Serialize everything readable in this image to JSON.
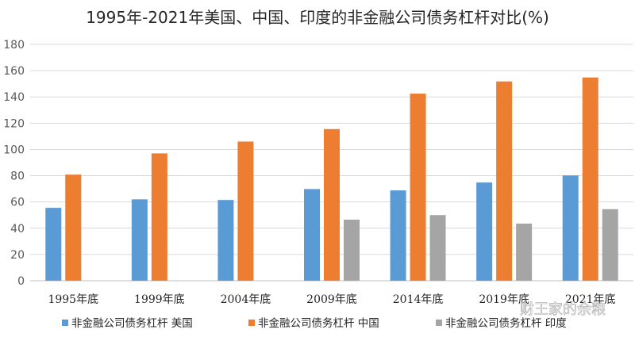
{
  "watermark": "财王家的余粮",
  "chart_data": {
    "type": "bar",
    "title": "1995年-2021年美国、中国、印度的非金融公司债务杠杆对比(%)",
    "categories": [
      "1995年底",
      "1999年底",
      "2004年底",
      "2009年底",
      "2014年底",
      "2019年底",
      "2021年底"
    ],
    "ylim": [
      0,
      180
    ],
    "yticks": [
      0,
      20,
      40,
      60,
      80,
      100,
      120,
      140,
      160,
      180
    ],
    "grid": true,
    "legend_position": "bottom",
    "series": [
      {
        "name": "非金融公司债务杠杆 美国",
        "color": "#5b9bd5",
        "values": [
          55.5,
          62,
          61.5,
          69.8,
          68.8,
          74.8,
          80.2
        ]
      },
      {
        "name": "非金融公司债务杠杆 中国",
        "color": "#ed7d31",
        "values": [
          80.8,
          97,
          106,
          115.5,
          142.5,
          151.8,
          154.8
        ]
      },
      {
        "name": "非金融公司债务杠杆 印度",
        "color": "#a5a5a5",
        "values": [
          null,
          null,
          null,
          46.5,
          50,
          43.5,
          54.5
        ]
      }
    ]
  }
}
